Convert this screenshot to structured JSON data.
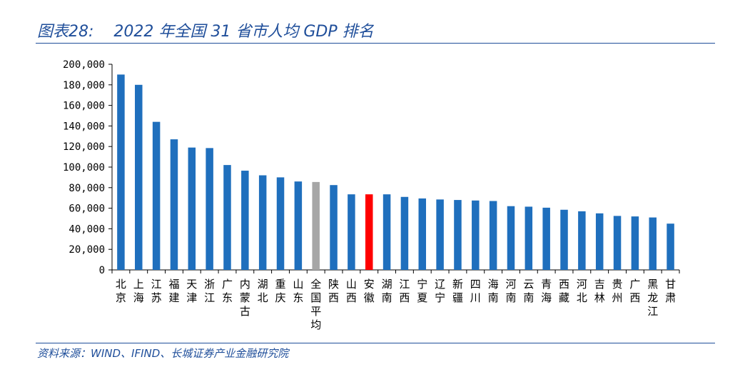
{
  "header": {
    "figure_label": "图表28:",
    "title": "2022 年全国 31 省市人均 GDP 排名"
  },
  "footer": {
    "source": "资料来源：WIND、IFIND、长城证券产业金融研究院"
  },
  "colors": {
    "bar": "#1f6fbd",
    "average": "#a6a6a6",
    "highlight": "#ff0000",
    "accent": "#1f4e9a"
  },
  "chart_data": {
    "type": "bar",
    "title": "2022 年全国 31 省市人均 GDP 排名",
    "xlabel": "",
    "ylabel": "",
    "ylim": [
      0,
      200000
    ],
    "yticks": [
      "0",
      "20,000",
      "40,000",
      "60,000",
      "80,000",
      "100,000",
      "120,000",
      "140,000",
      "160,000",
      "180,000",
      "200,000"
    ],
    "ytick_values": [
      0,
      20000,
      40000,
      60000,
      80000,
      100000,
      120000,
      140000,
      160000,
      180000,
      200000
    ],
    "grid": false,
    "legend": "none",
    "categories": [
      "北京",
      "上海",
      "江苏",
      "福建",
      "天津",
      "浙江",
      "广东",
      "内蒙古",
      "湖北",
      "重庆",
      "山东",
      "全国平均",
      "陕西",
      "山西",
      "安徽",
      "湖南",
      "江西",
      "宁夏",
      "辽宁",
      "新疆",
      "四川",
      "海南",
      "河南",
      "云南",
      "青海",
      "西藏",
      "河北",
      "吉林",
      "贵州",
      "广西",
      "黑龙江",
      "甘肃"
    ],
    "values": [
      190000,
      180000,
      144000,
      127000,
      119000,
      118500,
      102000,
      96500,
      92000,
      90000,
      86000,
      85500,
      82500,
      73500,
      73500,
      73500,
      71000,
      69500,
      68500,
      68000,
      67500,
      67000,
      62000,
      61500,
      60500,
      58500,
      57000,
      55000,
      52500,
      52000,
      51000,
      45000
    ],
    "highlight": {
      "average_index": 11,
      "highlight_index": 14
    }
  }
}
